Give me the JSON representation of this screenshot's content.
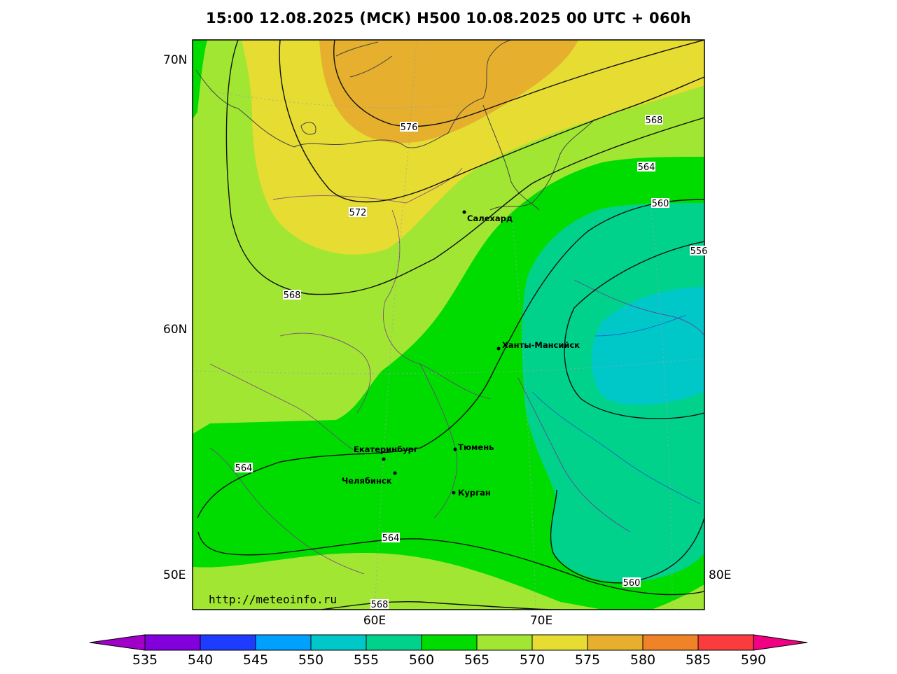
{
  "title": "15:00 12.08.2025 (МСК) H500  10.08.2025 00 UTC + 060h",
  "watermark": "http://meteoinfo.ru",
  "axes": {
    "lat_labels": [
      "70N",
      "60N",
      "50E"
    ],
    "lon_labels": [
      "60E",
      "70E",
      "80E"
    ]
  },
  "cities": [
    {
      "name": "Салехард"
    },
    {
      "name": "Ханты-Мансийск"
    },
    {
      "name": "Екатеринбург"
    },
    {
      "name": "Тюмень"
    },
    {
      "name": "Челябинск"
    },
    {
      "name": "Курган"
    }
  ],
  "contour_labels": [
    "576",
    "568",
    "564",
    "560",
    "556",
    "572",
    "568",
    "564",
    "564",
    "560",
    "568"
  ],
  "colorbar": {
    "ticks": [
      "535",
      "540",
      "545",
      "550",
      "555",
      "560",
      "565",
      "570",
      "575",
      "580",
      "585",
      "590"
    ],
    "colors": [
      "#8200dc",
      "#1e3cff",
      "#00a0ff",
      "#00c8c8",
      "#00d28c",
      "#00dc00",
      "#a0e632",
      "#e6dc32",
      "#e6af2d",
      "#f08228",
      "#fa3c3c",
      "#f00082"
    ],
    "under_color": "#a000c8",
    "over_color": "#f00082"
  },
  "colors": {
    "c555": "#00d28c",
    "c550": "#00c8c8",
    "c560": "#00dc00",
    "c565": "#a0e632",
    "c570": "#e6dc32",
    "c575": "#e6af2d"
  }
}
